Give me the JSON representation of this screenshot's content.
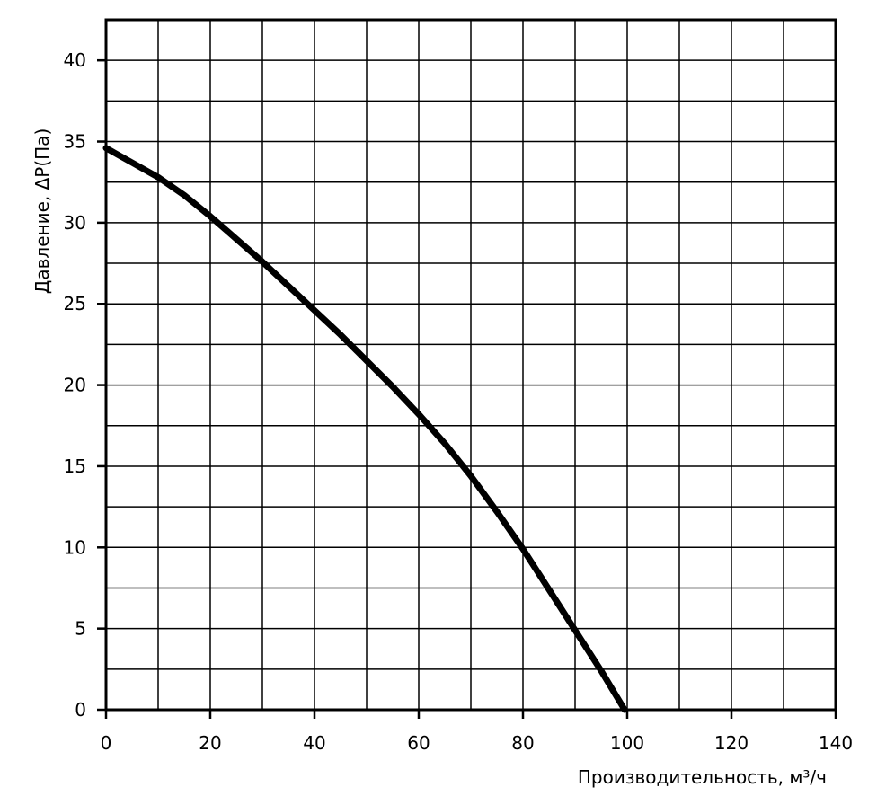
{
  "chart_data": {
    "type": "line",
    "title": "",
    "xlabel": "Производительность, м³/ч",
    "ylabel": "Давление, ΔP(Па)",
    "xlim": [
      0,
      140
    ],
    "ylim": [
      0,
      42.5
    ],
    "x_ticks": [
      0,
      20,
      40,
      60,
      80,
      100,
      120,
      140
    ],
    "y_ticks": [
      0,
      5,
      10,
      15,
      20,
      25,
      30,
      35,
      40
    ],
    "x_tick_labels": [
      "0",
      "20",
      "40",
      "60",
      "80",
      "100",
      "120",
      "140"
    ],
    "y_tick_labels": [
      "0",
      "5",
      "10",
      "15",
      "20",
      "25",
      "30",
      "35",
      "40"
    ],
    "grid": true,
    "grid_x_step": 10,
    "grid_y_step": 2.5,
    "line_color": "#000000",
    "series": [
      {
        "x": [
          0,
          5,
          10,
          15,
          20,
          25,
          30,
          35,
          40,
          45,
          50,
          55,
          60,
          65,
          70,
          75,
          80,
          85,
          90,
          95,
          99.5
        ],
        "y": [
          34.6,
          33.7,
          32.8,
          31.7,
          30.4,
          29.0,
          27.6,
          26.1,
          24.6,
          23.1,
          21.5,
          19.9,
          18.2,
          16.4,
          14.4,
          12.2,
          9.9,
          7.4,
          4.9,
          2.4,
          0
        ]
      }
    ]
  }
}
